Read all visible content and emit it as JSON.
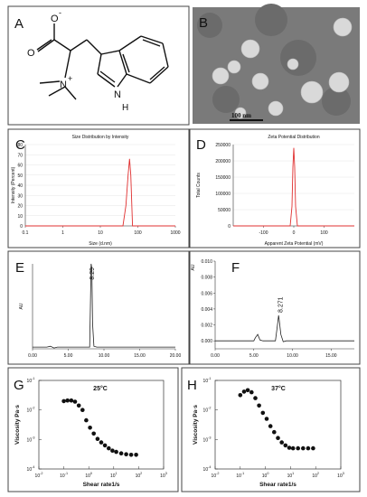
{
  "panels": {
    "A": {
      "letter": "A",
      "atoms": {
        "o_minus": "O",
        "o_minus_charge": "-",
        "o_double": "O",
        "n_plus": "N",
        "n_plus_charge": "+",
        "nh": "H",
        "n_ring": "N"
      }
    },
    "B": {
      "letter": "B",
      "scale_bar": "100 nm",
      "background": "#7a7a7a"
    },
    "C": {
      "letter": "C",
      "chart_data": {
        "type": "line",
        "title": "Size Distribution by Intensity",
        "xlabel": "Size (d.nm)",
        "ylabel": "Intensity (Percent)",
        "xscale": "log",
        "xlim": [
          0.1,
          1000
        ],
        "ylim": [
          0,
          80
        ],
        "xticks": [
          "0.1",
          "1",
          "10",
          "100",
          "1000"
        ],
        "yticks": [
          "0",
          "10",
          "20",
          "30",
          "40",
          "50",
          "60",
          "70",
          "80"
        ],
        "series": [
          {
            "color": "#e03030",
            "x": [
              0.1,
              40,
              48,
              55,
              60,
              65,
              72,
              1000
            ],
            "y": [
              0,
              0,
              20,
              50,
              66,
              50,
              0,
              0
            ]
          }
        ]
      }
    },
    "D": {
      "letter": "D",
      "chart_data": {
        "type": "line",
        "title": "Zeta Potential Distribution",
        "xlabel": "Apparent Zeta Potential (mV)",
        "ylabel": "Total Counts",
        "xlim": [
          -200,
          200
        ],
        "ylim": [
          0,
          250000
        ],
        "xticks": [
          "-100",
          "0",
          "100"
        ],
        "yticks": [
          "0",
          "50000",
          "100000",
          "150000",
          "200000",
          "250000"
        ],
        "series": [
          {
            "color": "#e03030",
            "x": [
              -200,
              -12,
              -6,
              -3,
              0,
              3,
              6,
              12,
              200
            ],
            "y": [
              0,
              0,
              60000,
              180000,
              240000,
              180000,
              60000,
              0,
              0
            ]
          }
        ]
      }
    },
    "E": {
      "letter": "E",
      "chart_data": {
        "type": "line",
        "ylabel": "AU",
        "xlim": [
          0,
          20
        ],
        "xticks": [
          "0.00",
          "5.00",
          "10.00",
          "15.00",
          "20.00"
        ],
        "peak_label": "8.29",
        "series": [
          {
            "color": "#222222",
            "x": [
              0,
              2,
              2.5,
              3,
              3.5,
              5,
              8,
              8.1,
              8.2,
              8.3,
              8.4,
              8.6,
              9,
              20
            ],
            "y": [
              0.02,
              0.02,
              0.03,
              0.01,
              0.02,
              0.02,
              0.02,
              0.5,
              1.0,
              0.95,
              0.3,
              0.03,
              0.02,
              0.02
            ]
          }
        ]
      }
    },
    "F": {
      "letter": "F",
      "chart_data": {
        "type": "line",
        "ylabel": "AU",
        "xlim": [
          0,
          18
        ],
        "ylim": [
          -0.001,
          0.01
        ],
        "xticks": [
          "0.00",
          "5.00",
          "10.00",
          "15.00"
        ],
        "yticks": [
          "0.000",
          "0.002",
          "0.004",
          "0.006",
          "0.008",
          "0.010"
        ],
        "peak_label": "8.271",
        "series": [
          {
            "color": "#222222",
            "x": [
              0,
              5,
              5.2,
              5.5,
              5.8,
              6.2,
              7.8,
              8.0,
              8.2,
              8.3,
              8.5,
              8.8,
              9.2,
              18
            ],
            "y": [
              0,
              0,
              0.0004,
              0.0008,
              0.0001,
              0,
              0,
              0.0015,
              0.0032,
              0.0025,
              0.0008,
              -0.0001,
              0,
              0
            ]
          }
        ]
      }
    },
    "G": {
      "letter": "G",
      "temperature": "25°C",
      "chart_data": {
        "type": "scatter",
        "xlabel": "Shear rate1/s",
        "ylabel": "Viscosity Pa·s",
        "xscale": "log",
        "yscale": "log",
        "xlim": [
          -2,
          3
        ],
        "ylim": [
          -4,
          -1
        ],
        "xtick_exponents": [
          -2,
          -1,
          0,
          1,
          2,
          3
        ],
        "ytick_exponents": [
          -4,
          -3,
          -2,
          -1
        ],
        "log10_x": [
          -1.0,
          -0.85,
          -0.7,
          -0.55,
          -0.4,
          -0.25,
          -0.1,
          0.05,
          0.2,
          0.35,
          0.5,
          0.65,
          0.8,
          0.95,
          1.1,
          1.3,
          1.5,
          1.7,
          1.9
        ],
        "log10_y": [
          -1.7,
          -1.68,
          -1.68,
          -1.72,
          -1.85,
          -2.0,
          -2.35,
          -2.6,
          -2.8,
          -2.98,
          -3.1,
          -3.2,
          -3.3,
          -3.38,
          -3.42,
          -3.47,
          -3.5,
          -3.52,
          -3.52
        ]
      }
    },
    "H": {
      "letter": "H",
      "temperature": "37°C",
      "chart_data": {
        "type": "scatter",
        "xlabel": "Shear rate1/s",
        "ylabel": "Viscosity Pa·s",
        "xscale": "log",
        "yscale": "log",
        "xlim": [
          -2,
          3
        ],
        "ylim": [
          -4,
          -1
        ],
        "xtick_exponents": [
          -2,
          -1,
          0,
          1,
          2,
          3
        ],
        "ytick_exponents": [
          -4,
          -3,
          -2,
          -1
        ],
        "log10_x": [
          -1.0,
          -0.85,
          -0.7,
          -0.55,
          -0.4,
          -0.25,
          -0.1,
          0.05,
          0.2,
          0.35,
          0.5,
          0.65,
          0.8,
          0.95,
          1.1,
          1.3,
          1.5,
          1.7,
          1.9
        ],
        "log10_y": [
          -1.5,
          -1.38,
          -1.33,
          -1.4,
          -1.6,
          -1.85,
          -2.1,
          -2.3,
          -2.55,
          -2.75,
          -2.95,
          -3.1,
          -3.2,
          -3.28,
          -3.3,
          -3.3,
          -3.3,
          -3.3,
          -3.3
        ]
      }
    }
  }
}
